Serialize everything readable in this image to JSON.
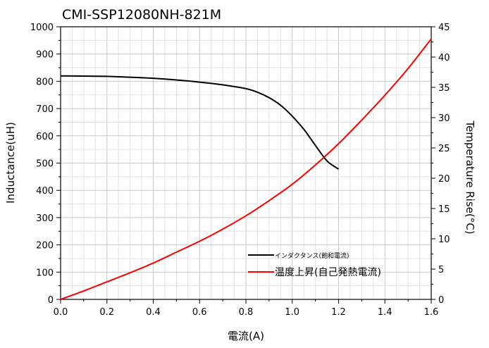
{
  "chart_data": {
    "type": "line",
    "title": "CMI-SSP12080NH-821M",
    "xlabel": "電流(A)",
    "ylabel": "Inductance(uH)",
    "y2label": "Temperature Rise(°C)",
    "xlim": [
      0,
      1.6
    ],
    "ylim": [
      0,
      1000
    ],
    "y2lim": [
      0,
      45
    ],
    "xticks": [
      "0.0",
      "0.2",
      "0.4",
      "0.6",
      "0.8",
      "1.0",
      "1.2",
      "1.4",
      "1.6"
    ],
    "yticks": [
      "0",
      "100",
      "200",
      "300",
      "400",
      "500",
      "600",
      "700",
      "800",
      "900",
      "1000"
    ],
    "y2ticks": [
      "0",
      "5",
      "10",
      "15",
      "20",
      "25",
      "30",
      "35",
      "40",
      "45"
    ],
    "grid": true,
    "legend_position": "bottom-right",
    "series": [
      {
        "name": "インダクタンス(飽和電流)",
        "axis": "left",
        "color": "#000000",
        "x": [
          0.0,
          0.1,
          0.2,
          0.3,
          0.4,
          0.5,
          0.6,
          0.7,
          0.8,
          0.85,
          0.9,
          0.95,
          1.0,
          1.05,
          1.1,
          1.15,
          1.2
        ],
        "values": [
          820,
          819,
          818,
          815,
          811,
          805,
          797,
          787,
          773,
          760,
          740,
          712,
          672,
          624,
          565,
          508,
          478
        ]
      },
      {
        "name": "温度上昇(自己発熱電流)",
        "axis": "right",
        "color": "#ff0000",
        "x": [
          0.0,
          0.1,
          0.2,
          0.3,
          0.4,
          0.5,
          0.6,
          0.7,
          0.8,
          0.9,
          1.0,
          1.1,
          1.2,
          1.3,
          1.4,
          1.5,
          1.6
        ],
        "values": [
          0.0,
          1.4,
          2.9,
          4.4,
          6.0,
          7.8,
          9.6,
          11.6,
          13.8,
          16.3,
          19.0,
          22.2,
          25.7,
          29.6,
          33.7,
          38.1,
          43.0
        ]
      }
    ]
  }
}
